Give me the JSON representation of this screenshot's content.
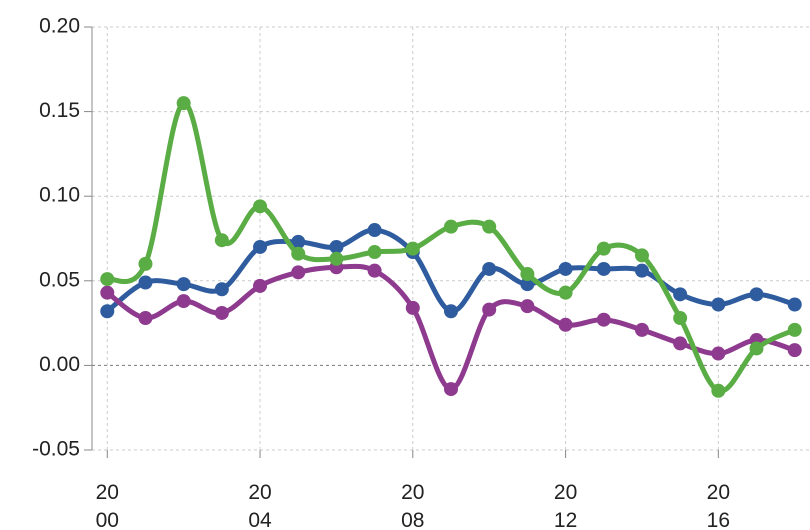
{
  "chart_data": {
    "type": "line",
    "x": [
      2000,
      2001,
      2002,
      2003,
      2004,
      2005,
      2006,
      2007,
      2008,
      2009,
      2010,
      2011,
      2012,
      2013,
      2014,
      2015,
      2016,
      2017,
      2018
    ],
    "series": [
      {
        "color": "#2e5c9e",
        "values": [
          0.032,
          0.049,
          0.048,
          0.045,
          0.07,
          0.073,
          0.07,
          0.08,
          0.067,
          0.032,
          0.057,
          0.048,
          0.057,
          0.057,
          0.056,
          0.042,
          0.036,
          0.042,
          0.036
        ]
      },
      {
        "color": "#8e3a8e",
        "values": [
          0.043,
          0.028,
          0.038,
          0.031,
          0.047,
          0.055,
          0.058,
          0.056,
          0.034,
          -0.014,
          0.033,
          0.035,
          0.024,
          0.027,
          0.021,
          0.013,
          0.007,
          0.015,
          0.009
        ]
      },
      {
        "color": "#5aac44",
        "values": [
          0.051,
          0.06,
          0.155,
          0.074,
          0.094,
          0.066,
          0.063,
          0.067,
          0.069,
          0.082,
          0.082,
          0.054,
          0.043,
          0.069,
          0.065,
          0.028,
          -0.015,
          0.01,
          0.021
        ]
      }
    ],
    "xlim": [
      1999.6,
      2018.4
    ],
    "xticks": [
      {
        "value": 2000,
        "label": "20\n00"
      },
      {
        "value": 2004,
        "label": "20\n04"
      },
      {
        "value": 2008,
        "label": "20\n08"
      },
      {
        "value": 2012,
        "label": "20\n12"
      },
      {
        "value": 2016,
        "label": "20\n16"
      }
    ],
    "ylim": [
      -0.05,
      0.2
    ],
    "yticks": [
      {
        "value": -0.05,
        "label": "-0.05"
      },
      {
        "value": 0,
        "label": "0.00"
      },
      {
        "value": 0.05,
        "label": "0.05"
      },
      {
        "value": 0.1,
        "label": "0.10"
      },
      {
        "value": 0.15,
        "label": "0.15"
      },
      {
        "value": 0.2,
        "label": "0.20"
      }
    ],
    "grid": true
  }
}
